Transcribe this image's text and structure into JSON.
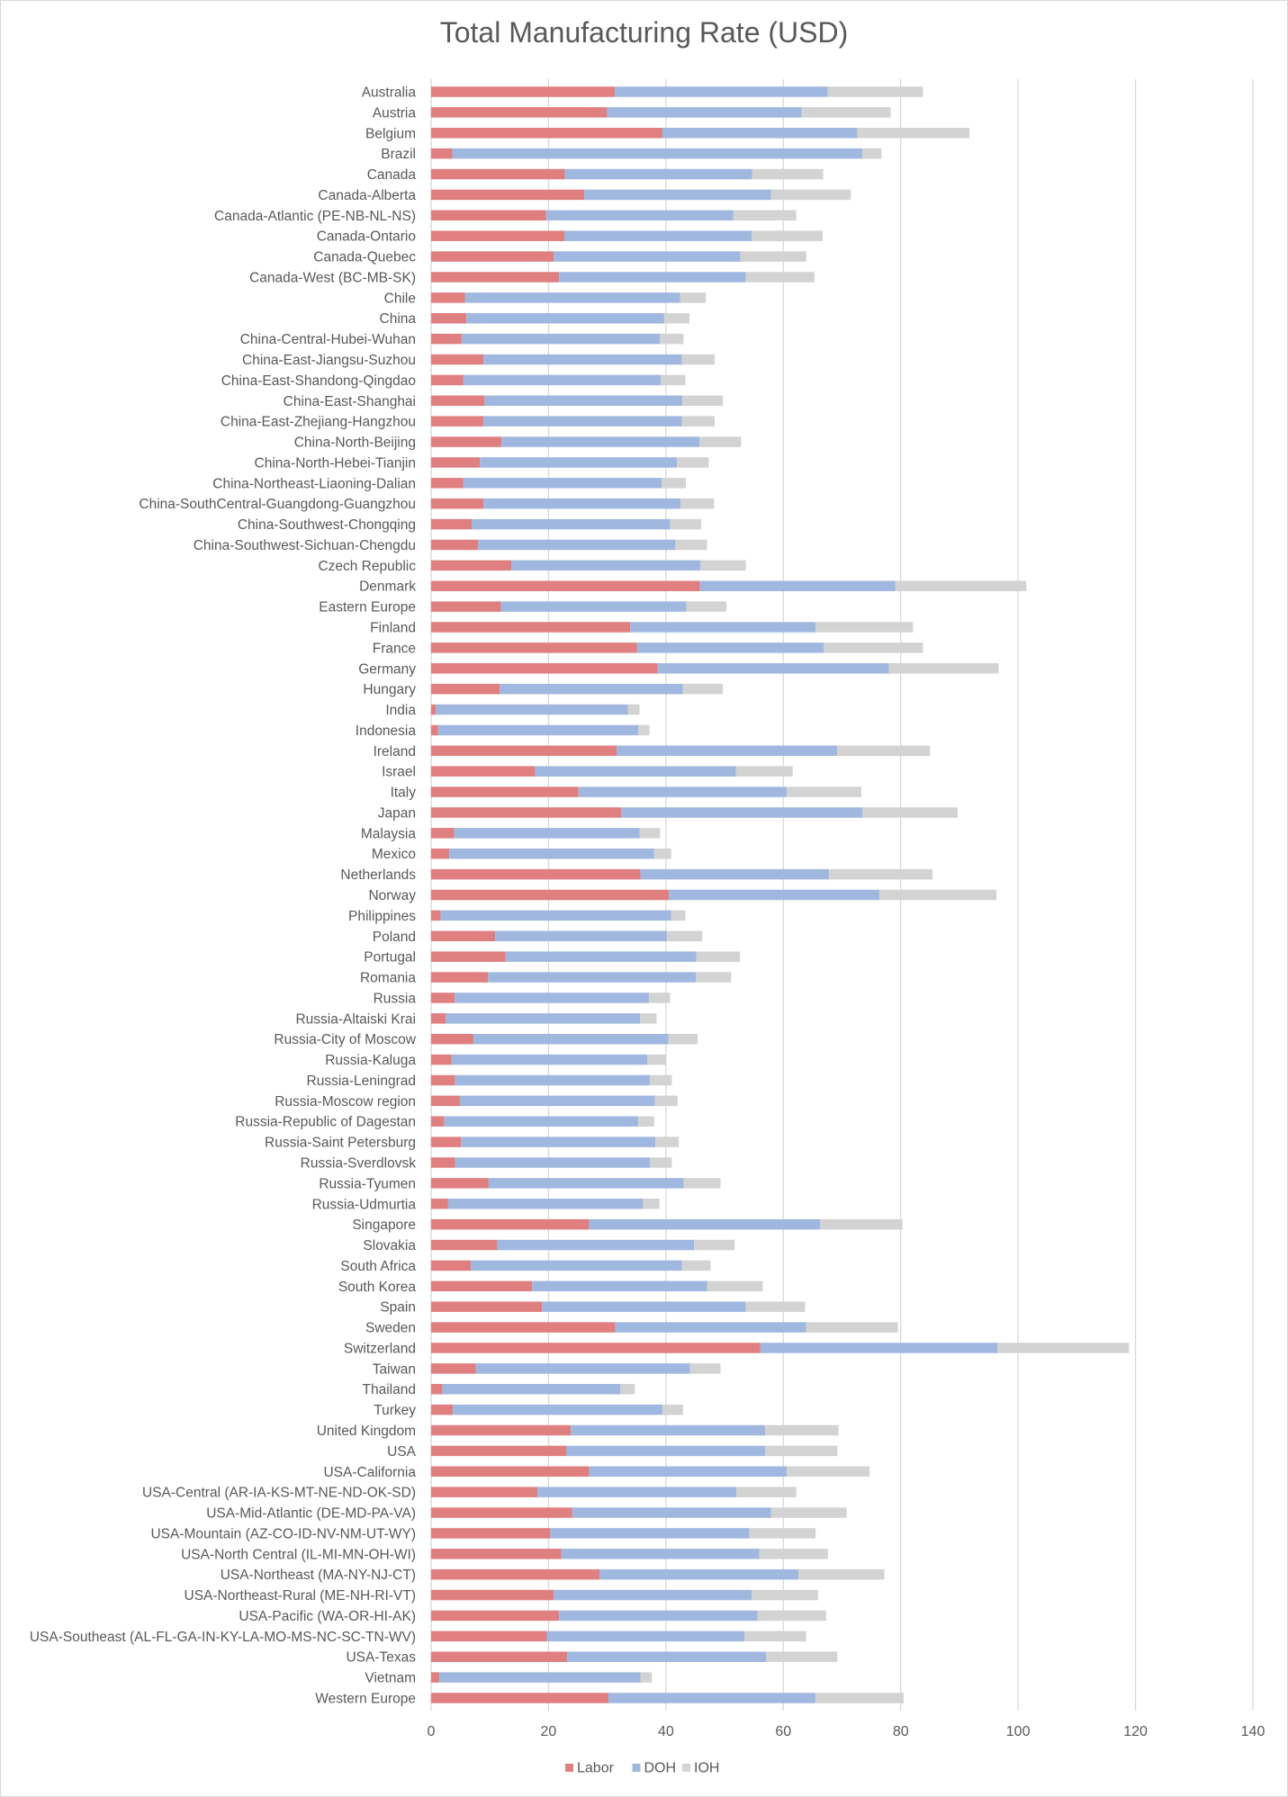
{
  "chart_data": {
    "type": "bar",
    "orientation": "horizontal",
    "stacked": true,
    "title": "Total Manufacturing Rate (USD)",
    "xlabel": "",
    "ylabel": "",
    "xlim": [
      0,
      140
    ],
    "xticks": [
      0,
      20,
      40,
      60,
      80,
      100,
      120,
      140
    ],
    "grid": true,
    "legend_position": "bottom",
    "categories": [
      "Australia",
      "Austria",
      "Belgium",
      "Brazil",
      "Canada",
      "Canada-Alberta",
      "Canada-Atlantic (PE-NB-NL-NS)",
      "Canada-Ontario",
      "Canada-Quebec",
      "Canada-West (BC-MB-SK)",
      "Chile",
      "China",
      "China-Central-Hubei-Wuhan",
      "China-East-Jiangsu-Suzhou",
      "China-East-Shandong-Qingdao",
      "China-East-Shanghai",
      "China-East-Zhejiang-Hangzhou",
      "China-North-Beijing",
      "China-North-Hebei-Tianjin",
      "China-Northeast-Liaoning-Dalian",
      "China-SouthCentral-Guangdong-Guangzhou",
      "China-Southwest-Chongqing",
      "China-Southwest-Sichuan-Chengdu",
      "Czech Republic",
      "Denmark",
      "Eastern Europe",
      "Finland",
      "France",
      "Germany",
      "Hungary",
      "India",
      "Indonesia",
      "Ireland",
      "Israel",
      "Italy",
      "Japan",
      "Malaysia",
      "Mexico",
      "Netherlands",
      "Norway",
      "Philippines",
      "Poland",
      "Portugal",
      "Romania",
      "Russia",
      "Russia-Altaiski Krai",
      "Russia-City of Moscow",
      "Russia-Kaluga",
      "Russia-Leningrad",
      "Russia-Moscow region",
      "Russia-Republic of Dagestan",
      "Russia-Saint Petersburg",
      "Russia-Sverdlovsk",
      "Russia-Tyumen",
      "Russia-Udmurtia",
      "Singapore",
      "Slovakia",
      "South Africa",
      "South Korea",
      "Spain",
      "Sweden",
      "Switzerland",
      "Taiwan",
      "Thailand",
      "Turkey",
      "United Kingdom",
      "USA",
      "USA-California",
      "USA-Central (AR-IA-KS-MT-NE-ND-OK-SD)",
      "USA-Mid-Atlantic (DE-MD-PA-VA)",
      "USA-Mountain (AZ-CO-ID-NV-NM-UT-WY)",
      "USA-North Central (IL-MI-MN-OH-WI)",
      "USA-Northeast (MA-NY-NJ-CT)",
      "USA-Northeast-Rural (ME-NH-RI-VT)",
      "USA-Pacific (WA-OR-HI-AK)",
      "USA-Southeast (AL-FL-GA-IN-KY-LA-MO-MS-NC-SC-TN-WV)",
      "USA-Texas",
      "Vietnam",
      "Western Europe"
    ],
    "series": [
      {
        "name": "Labor",
        "color": "#e07f7f",
        "values": [
          31.3,
          30.0,
          39.4,
          3.6,
          22.8,
          26.1,
          19.6,
          22.7,
          20.9,
          21.8,
          5.8,
          6.0,
          5.2,
          8.9,
          5.5,
          9.1,
          8.9,
          12.0,
          8.3,
          5.5,
          8.9,
          6.9,
          8.0,
          13.7,
          45.8,
          11.9,
          33.9,
          35.1,
          38.6,
          11.7,
          0.8,
          1.2,
          31.6,
          17.7,
          25.1,
          32.4,
          3.9,
          3.1,
          35.7,
          40.5,
          1.6,
          10.9,
          12.7,
          9.7,
          4.0,
          2.5,
          7.2,
          3.5,
          4.1,
          4.9,
          2.2,
          5.1,
          4.1,
          9.8,
          2.9,
          26.9,
          11.3,
          6.8,
          17.2,
          18.9,
          31.4,
          56.1,
          7.6,
          1.9,
          3.7,
          23.8,
          23.0,
          26.9,
          18.1,
          24.0,
          20.3,
          22.2,
          28.7,
          20.9,
          21.8,
          19.7,
          23.2,
          1.4,
          30.2
        ]
      },
      {
        "name": "DOH",
        "color": "#a0b8e0",
        "values": [
          36.3,
          33.1,
          33.2,
          69.9,
          31.9,
          31.8,
          31.9,
          31.9,
          31.8,
          31.8,
          36.6,
          33.7,
          33.8,
          33.8,
          33.6,
          33.7,
          33.8,
          33.7,
          33.6,
          33.8,
          33.6,
          33.8,
          33.6,
          32.2,
          33.3,
          31.6,
          31.6,
          31.8,
          39.4,
          31.2,
          32.7,
          34.1,
          37.6,
          34.2,
          35.5,
          41.1,
          31.6,
          34.9,
          32.1,
          35.9,
          39.3,
          29.3,
          32.5,
          35.4,
          33.1,
          33.1,
          33.2,
          33.3,
          33.2,
          33.2,
          33.1,
          33.1,
          33.2,
          33.2,
          33.2,
          39.4,
          33.5,
          35.9,
          29.8,
          34.7,
          32.5,
          40.4,
          36.5,
          30.3,
          35.7,
          33.1,
          33.9,
          33.7,
          33.9,
          33.9,
          33.9,
          33.7,
          33.9,
          33.7,
          33.8,
          33.7,
          33.9,
          34.3,
          35.3
        ]
      },
      {
        "name": "IOH",
        "color": "#d3d3d3",
        "values": [
          16.2,
          15.2,
          19.1,
          3.2,
          12.1,
          13.6,
          10.7,
          12.1,
          11.2,
          11.7,
          4.4,
          4.3,
          4.0,
          5.6,
          4.2,
          6.9,
          5.6,
          7.1,
          5.4,
          4.1,
          5.7,
          5.3,
          5.4,
          7.7,
          22.3,
          6.8,
          16.6,
          16.9,
          18.7,
          6.8,
          2.0,
          1.9,
          15.8,
          9.7,
          12.7,
          16.2,
          3.5,
          2.9,
          17.6,
          19.9,
          2.4,
          6.0,
          7.4,
          6.0,
          3.6,
          2.8,
          5.0,
          3.2,
          3.7,
          3.9,
          2.7,
          4.0,
          3.7,
          6.3,
          2.8,
          14.0,
          6.9,
          4.9,
          9.5,
          10.1,
          15.6,
          22.4,
          5.2,
          2.5,
          3.5,
          12.5,
          12.3,
          14.1,
          10.2,
          12.9,
          11.3,
          11.7,
          14.6,
          11.3,
          11.7,
          10.5,
          12.1,
          1.9,
          15.0
        ]
      }
    ]
  }
}
